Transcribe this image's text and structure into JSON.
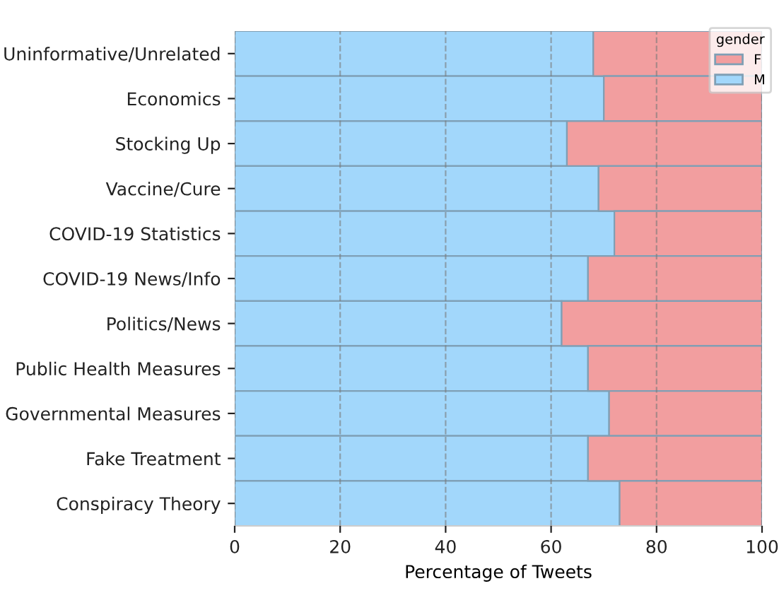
{
  "chart_data": {
    "type": "bar",
    "orientation": "horizontal",
    "stacked": true,
    "categories": [
      "Uninformative/Unrelated",
      "Economics",
      "Stocking Up",
      "Vaccine/Cure",
      "COVID-19 Statistics",
      "COVID-19 News/Info",
      "Politics/News",
      "Public Health Measures",
      "Governmental Measures",
      "Fake Treatment",
      "Conspiracy Theory"
    ],
    "series": [
      {
        "name": "M",
        "color": "#a2d7fb",
        "values": [
          68,
          70,
          63,
          69,
          72,
          67,
          62,
          67,
          71,
          67,
          73
        ]
      },
      {
        "name": "F",
        "color": "#f29e9f",
        "values": [
          32,
          30,
          37,
          31,
          28,
          33,
          38,
          33,
          29,
          33,
          27
        ]
      }
    ],
    "xlabel": "Percentage of Tweets",
    "legend_title": "gender",
    "xlim": [
      0,
      100
    ],
    "xticks": [
      0,
      20,
      40,
      60,
      80,
      100
    ],
    "grid": "x",
    "legend": "top right"
  }
}
